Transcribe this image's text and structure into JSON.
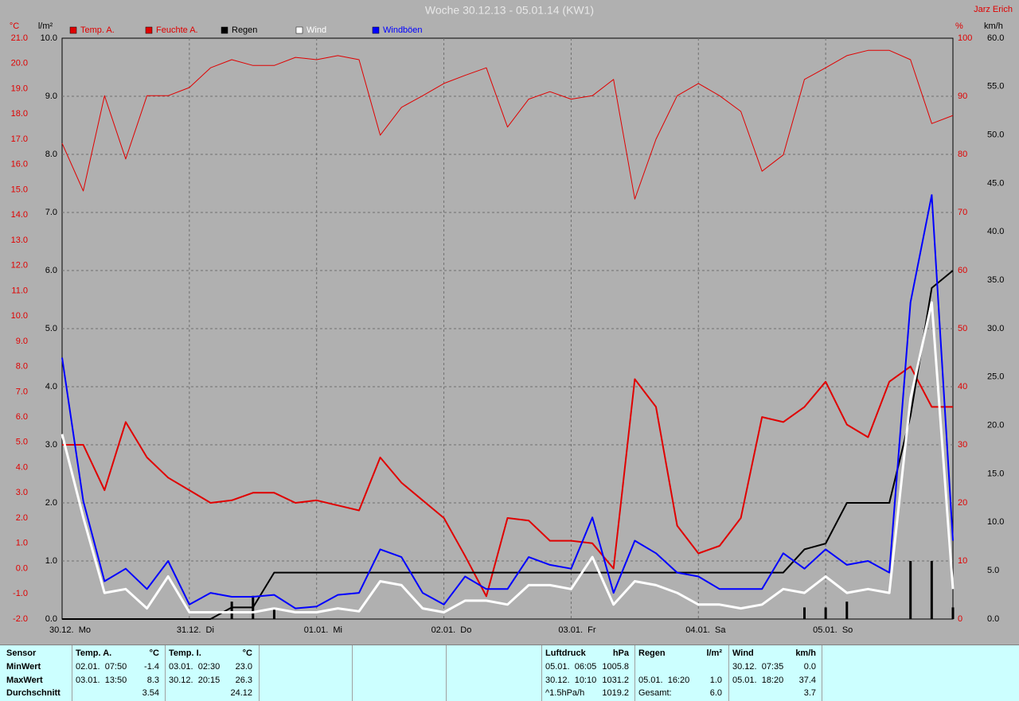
{
  "chart_data": {
    "type": "line",
    "title": "Woche 30.12.13 - 05.01.14 (KW1)",
    "author": "Jarz Erich",
    "categories": [
      "30.12.  Mo",
      null,
      null,
      null,
      null,
      null,
      "31.12.  Di",
      null,
      null,
      null,
      null,
      null,
      "01.01.  Mi",
      null,
      null,
      null,
      null,
      null,
      "02.01.  Do",
      null,
      null,
      null,
      null,
      null,
      "03.01.  Fr",
      null,
      null,
      null,
      null,
      null,
      "04.01.  Sa",
      null,
      null,
      null,
      null,
      null,
      "05.01.  So",
      null,
      null,
      null,
      null,
      null,
      null
    ],
    "axes": [
      {
        "label": "°C",
        "color": "#e00000",
        "lim": [
          -2,
          21
        ],
        "ticks": [
          {
            "value": -2,
            "label": "-2.0"
          },
          {
            "value": -1,
            "label": "-1.0"
          },
          {
            "value": 0,
            "label": "0.0"
          },
          {
            "value": 1,
            "label": "1.0"
          },
          {
            "value": 2,
            "label": "2.0"
          },
          {
            "value": 3,
            "label": "3.0"
          },
          {
            "value": 4,
            "label": "4.0"
          },
          {
            "value": 5,
            "label": "5.0"
          },
          {
            "value": 6,
            "label": "6.0"
          },
          {
            "value": 7,
            "label": "7.0"
          },
          {
            "value": 8,
            "label": "8.0"
          },
          {
            "value": 9,
            "label": "9.0"
          },
          {
            "value": 10,
            "label": "10.0"
          },
          {
            "value": 11,
            "label": "11.0"
          },
          {
            "value": 12,
            "label": "12.0"
          },
          {
            "value": 13,
            "label": "13.0"
          },
          {
            "value": 14,
            "label": "14.0"
          },
          {
            "value": 15,
            "label": "15.0"
          },
          {
            "value": 16,
            "label": "16.0"
          },
          {
            "value": 17,
            "label": "17.0"
          },
          {
            "value": 18,
            "label": "18.0"
          },
          {
            "value": 19,
            "label": "19.0"
          },
          {
            "value": 20,
            "label": "20.0"
          },
          {
            "value": 21,
            "label": "21.0"
          }
        ]
      },
      {
        "label": "l/m²",
        "color": "#000000",
        "lim": [
          0,
          10
        ],
        "ticks": [
          {
            "value": 0,
            "label": "0.0"
          },
          {
            "value": 1,
            "label": "1.0"
          },
          {
            "value": 2,
            "label": "2.0"
          },
          {
            "value": 3,
            "label": "3.0"
          },
          {
            "value": 4,
            "label": "4.0"
          },
          {
            "value": 5,
            "label": "5.0"
          },
          {
            "value": 6,
            "label": "6.0"
          },
          {
            "value": 7,
            "label": "7.0"
          },
          {
            "value": 8,
            "label": "8.0"
          },
          {
            "value": 9,
            "label": "9.0"
          },
          {
            "value": 10,
            "label": "10.0"
          }
        ]
      },
      {
        "label": "%",
        "color": "#e00000",
        "lim": [
          0,
          100
        ],
        "grid": true,
        "ticks": [
          0,
          10,
          20,
          30,
          40,
          50,
          60,
          70,
          80,
          90,
          100
        ]
      },
      {
        "label": "km/h",
        "color": "#000000",
        "lim": [
          0,
          60
        ],
        "ticks": [
          {
            "value": 0,
            "label": "0.0"
          },
          {
            "value": 5,
            "label": "5.0"
          },
          {
            "value": 10,
            "label": "10.0"
          },
          {
            "value": 15,
            "label": "15.0"
          },
          {
            "value": 20,
            "label": "20.0"
          },
          {
            "value": 25,
            "label": "25.0"
          },
          {
            "value": 30,
            "label": "30.0"
          },
          {
            "value": 35,
            "label": "35.0"
          },
          {
            "value": 40,
            "label": "40.0"
          },
          {
            "value": 45,
            "label": "45.0"
          },
          {
            "value": 50,
            "label": "50.0"
          },
          {
            "value": 55,
            "label": "55.0"
          },
          {
            "value": 60,
            "label": "60.0"
          }
        ]
      }
    ],
    "series": [
      {
        "name": "Temp. A.",
        "color": "#e00000",
        "axis": 0,
        "values": [
          4.9,
          4.9,
          3.1,
          5.8,
          4.4,
          3.6,
          3.1,
          2.6,
          2.7,
          3.0,
          3.0,
          2.6,
          2.7,
          2.5,
          2.3,
          4.4,
          3.4,
          2.7,
          2.0,
          0.5,
          -1.1,
          2.0,
          1.9,
          1.1,
          1.1,
          1.0,
          0.0,
          7.5,
          6.4,
          1.7,
          0.6,
          0.9,
          2.0,
          6.0,
          5.8,
          6.4,
          7.4,
          5.7,
          5.2,
          7.4,
          8.0,
          6.4,
          6.4
        ]
      },
      {
        "name": "Feuchte A.",
        "color": "#e00000",
        "axis": 2,
        "values": [
          81.9,
          73.7,
          90.1,
          79.2,
          90.1,
          90.1,
          91.5,
          94.9,
          96.3,
          95.3,
          95.3,
          96.7,
          96.3,
          97.0,
          96.3,
          83.3,
          88.1,
          90.1,
          92.2,
          93.6,
          94.9,
          84.7,
          89.5,
          90.8,
          89.5,
          90.1,
          92.9,
          72.3,
          82.6,
          90.1,
          92.2,
          90.1,
          87.4,
          77.1,
          79.9,
          92.9,
          94.9,
          97.0,
          97.9,
          97.9,
          96.3,
          85.3,
          86.7
        ]
      },
      {
        "name": "Regen",
        "color": "#000000",
        "axis": 1,
        "values": [
          0,
          0,
          0,
          0,
          0,
          0,
          0,
          0,
          0.2,
          0.2,
          0.8,
          0.8,
          0.8,
          0.8,
          0.8,
          0.8,
          0.8,
          0.8,
          0.8,
          0.8,
          0.8,
          0.8,
          0.8,
          0.8,
          0.8,
          0.8,
          0.8,
          0.8,
          0.8,
          0.8,
          0.8,
          0.8,
          0.8,
          0.8,
          0.8,
          1.2,
          1.3,
          2.0,
          2.0,
          2.0,
          3.5,
          5.7,
          6.0
        ]
      },
      {
        "name": "Wind",
        "color": "#ffffff",
        "axis": 3,
        "values": [
          19.1,
          10.5,
          2.7,
          3.1,
          1.1,
          4.4,
          0.7,
          0.7,
          0.7,
          0.7,
          1.1,
          0.7,
          0.7,
          1.1,
          0.8,
          3.9,
          3.5,
          1.1,
          0.7,
          1.9,
          1.9,
          1.5,
          3.5,
          3.5,
          3.1,
          6.4,
          1.5,
          3.9,
          3.5,
          2.7,
          1.5,
          1.5,
          1.1,
          1.5,
          3.1,
          2.7,
          4.4,
          2.7,
          3.1,
          2.7,
          22.8,
          32.7,
          3.1
        ]
      },
      {
        "name": "Windböen",
        "color": "#0000ff",
        "axis": 3,
        "values": [
          27.0,
          12.2,
          3.9,
          5.2,
          3.1,
          6.0,
          1.5,
          2.7,
          2.3,
          2.3,
          2.5,
          1.1,
          1.3,
          2.5,
          2.7,
          7.2,
          6.4,
          2.7,
          1.5,
          4.4,
          3.1,
          3.1,
          6.4,
          5.6,
          5.2,
          10.5,
          2.7,
          8.1,
          6.8,
          4.8,
          4.4,
          3.1,
          3.1,
          3.1,
          6.8,
          5.2,
          7.2,
          5.6,
          6.0,
          4.8,
          32.7,
          43.8,
          8.1
        ]
      }
    ],
    "rain_bars": {
      "color": "#000000",
      "axis": 1,
      "values": [
        null,
        null,
        null,
        null,
        null,
        null,
        null,
        null,
        0.3,
        0.4,
        0.2,
        null,
        null,
        null,
        null,
        null,
        null,
        null,
        null,
        null,
        null,
        null,
        null,
        null,
        null,
        null,
        null,
        null,
        null,
        null,
        null,
        null,
        null,
        null,
        null,
        0.2,
        0.2,
        0.3,
        null,
        null,
        1.0,
        1.0,
        0.2
      ]
    }
  },
  "table": {
    "row_labels": [
      "Sensor",
      "MinWert",
      "MaxWert",
      "Durchschnitt"
    ],
    "columns": [
      {
        "title": "Temp. A.",
        "unit": "°C",
        "rows": [
          [
            "02.01.  07:50",
            "-1.4"
          ],
          [
            "03.01.  13:50",
            "8.3"
          ],
          [
            null,
            "3.54"
          ]
        ]
      },
      {
        "title": "Temp. I.",
        "unit": "°C",
        "rows": [
          [
            "03.01.  02:30",
            "23.0"
          ],
          [
            "30.12.  20:15",
            "26.3"
          ],
          [
            null,
            "24.12"
          ]
        ]
      },
      {
        "title": "Luftdruck",
        "unit": "hPa",
        "rows": [
          [
            "05.01.  06:05",
            "1005.8"
          ],
          [
            "30.12.  10:10",
            "1031.2"
          ],
          [
            "^1.5hPa/h",
            "1019.2"
          ]
        ]
      },
      {
        "title": "Regen",
        "unit": "l/m²",
        "rows": [
          [
            null,
            null
          ],
          [
            "05.01.  16:20",
            "1.0"
          ],
          [
            "Gesamt:",
            "6.0"
          ]
        ]
      },
      {
        "title": "Wind",
        "unit": "km/h",
        "rows": [
          [
            "30.12.  07:35",
            "0.0"
          ],
          [
            "05.01.  18:20",
            "37.4"
          ],
          [
            null,
            "3.7"
          ]
        ]
      }
    ]
  }
}
